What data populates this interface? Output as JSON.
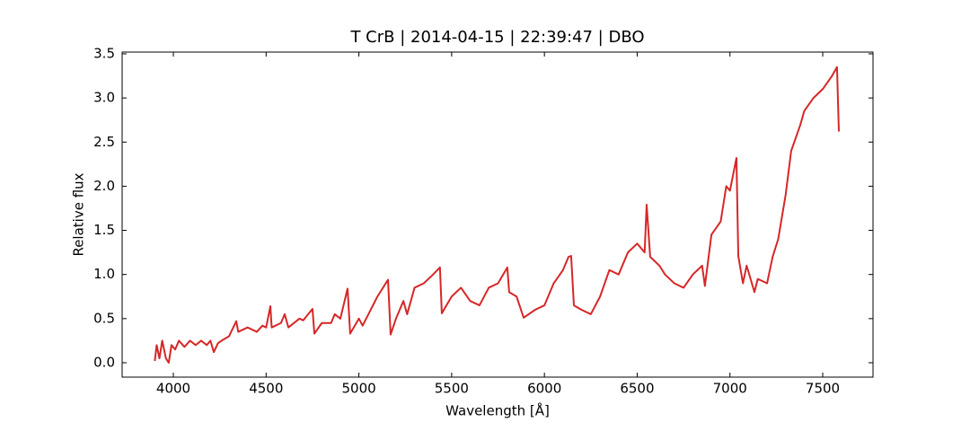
{
  "chart_data": {
    "type": "line",
    "title": "T CrB | 2014-04-15 | 22:39:47 | DBO",
    "xlabel": "Wavelength [Å]",
    "ylabel": "Relative flux",
    "color": "#d62728",
    "x": [
      3900,
      3910,
      3925,
      3940,
      3960,
      3975,
      3990,
      4010,
      4030,
      4060,
      4090,
      4120,
      4150,
      4180,
      4200,
      4218,
      4240,
      4260,
      4300,
      4339,
      4350,
      4400,
      4450,
      4480,
      4500,
      4523,
      4530,
      4580,
      4600,
      4620,
      4680,
      4700,
      4750,
      4760,
      4800,
      4850,
      4870,
      4900,
      4939,
      4953,
      5000,
      5020,
      5100,
      5157,
      5171,
      5200,
      5240,
      5260,
      5300,
      5350,
      5400,
      5437,
      5447,
      5500,
      5550,
      5600,
      5650,
      5700,
      5750,
      5800,
      5810,
      5850,
      5888,
      5950,
      6000,
      6050,
      6100,
      6130,
      6144,
      6159,
      6200,
      6250,
      6300,
      6350,
      6400,
      6450,
      6500,
      6540,
      6551,
      6570,
      6620,
      6650,
      6700,
      6750,
      6800,
      6850,
      6865,
      6900,
      6950,
      6980,
      7000,
      7035,
      7045,
      7070,
      7090,
      7132,
      7150,
      7200,
      7230,
      7260,
      7300,
      7330,
      7380,
      7400,
      7450,
      7500,
      7550,
      7577,
      7587
    ],
    "values": [
      0.02,
      0.2,
      0.05,
      0.25,
      0.05,
      0.0,
      0.2,
      0.15,
      0.25,
      0.18,
      0.25,
      0.2,
      0.25,
      0.2,
      0.25,
      0.12,
      0.22,
      0.25,
      0.3,
      0.47,
      0.35,
      0.4,
      0.35,
      0.42,
      0.4,
      0.64,
      0.4,
      0.45,
      0.55,
      0.4,
      0.5,
      0.48,
      0.61,
      0.33,
      0.45,
      0.45,
      0.55,
      0.5,
      0.84,
      0.33,
      0.5,
      0.42,
      0.75,
      0.94,
      0.32,
      0.5,
      0.7,
      0.55,
      0.85,
      0.9,
      1.0,
      1.08,
      0.56,
      0.75,
      0.85,
      0.7,
      0.65,
      0.85,
      0.9,
      1.08,
      0.8,
      0.75,
      0.51,
      0.6,
      0.65,
      0.9,
      1.05,
      1.2,
      1.21,
      0.65,
      0.6,
      0.55,
      0.75,
      1.05,
      1.0,
      1.25,
      1.35,
      1.25,
      1.79,
      1.2,
      1.1,
      1.0,
      0.9,
      0.85,
      1.0,
      1.1,
      0.87,
      1.45,
      1.6,
      2.0,
      1.95,
      2.32,
      1.21,
      0.9,
      1.1,
      0.8,
      0.95,
      0.9,
      1.2,
      1.4,
      1.9,
      2.4,
      2.7,
      2.85,
      3.0,
      3.1,
      3.25,
      3.35,
      2.62
    ],
    "xlim": [
      3724,
      7771
    ],
    "ylim": [
      -0.163,
      3.52
    ],
    "xticks": [
      4000,
      4500,
      5000,
      5500,
      6000,
      6500,
      7000,
      7500
    ],
    "yticks": [
      {
        "value": 0,
        "label": "0.0"
      },
      {
        "value": 0.5,
        "label": "0.5"
      },
      {
        "value": 1,
        "label": "1.0"
      },
      {
        "value": 1.5,
        "label": "1.5"
      },
      {
        "value": 2,
        "label": "2.0"
      },
      {
        "value": 2.5,
        "label": "2.5"
      },
      {
        "value": 3,
        "label": "3.0"
      },
      {
        "value": 3.5,
        "label": "3.5"
      }
    ],
    "grid": false
  }
}
